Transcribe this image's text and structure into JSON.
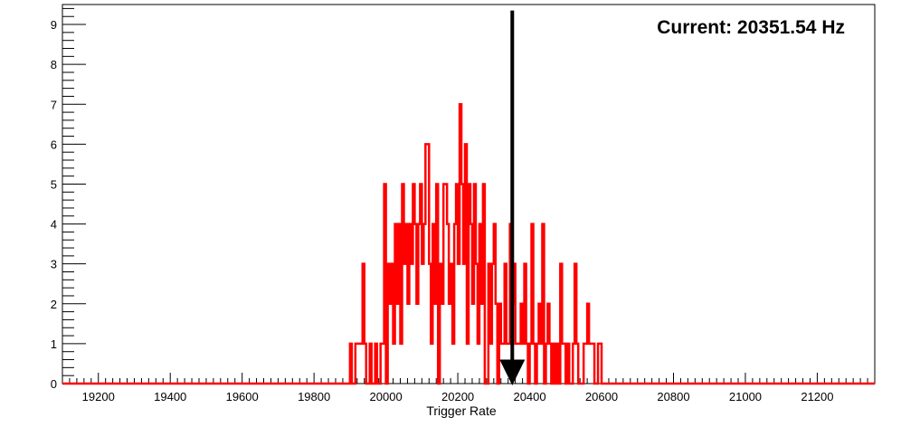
{
  "chart_data": {
    "type": "histogram-step",
    "title": "",
    "xlabel": "Trigger Rate",
    "ylabel": "",
    "xlim": [
      19100,
      21360
    ],
    "ylim": [
      0,
      9.5
    ],
    "grid": false,
    "x_ticks": [
      19200,
      19400,
      19600,
      19800,
      20000,
      20200,
      20400,
      20600,
      20800,
      21000,
      21200
    ],
    "y_ticks": [
      0,
      1,
      2,
      3,
      4,
      5,
      6,
      7,
      8,
      9
    ],
    "bin_width": 5,
    "series": [
      {
        "color": "#ff0000",
        "bins": [
          [
            19900,
            1
          ],
          [
            19905,
            0
          ],
          [
            19915,
            1
          ],
          [
            19935,
            3
          ],
          [
            19940,
            1
          ],
          [
            19945,
            0
          ],
          [
            19955,
            1
          ],
          [
            19960,
            0
          ],
          [
            19970,
            1
          ],
          [
            19975,
            0
          ],
          [
            19985,
            1
          ],
          [
            19990,
            1
          ],
          [
            19995,
            5
          ],
          [
            20000,
            0
          ],
          [
            20005,
            3
          ],
          [
            20010,
            2
          ],
          [
            20015,
            3
          ],
          [
            20020,
            1
          ],
          [
            20025,
            4
          ],
          [
            20030,
            2
          ],
          [
            20035,
            4
          ],
          [
            20040,
            1
          ],
          [
            20045,
            5
          ],
          [
            20050,
            3
          ],
          [
            20055,
            4
          ],
          [
            20060,
            2
          ],
          [
            20065,
            4
          ],
          [
            20070,
            3
          ],
          [
            20075,
            5
          ],
          [
            20080,
            4
          ],
          [
            20085,
            2
          ],
          [
            20090,
            4
          ],
          [
            20095,
            5
          ],
          [
            20100,
            3
          ],
          [
            20105,
            4
          ],
          [
            20110,
            6
          ],
          [
            20120,
            3
          ],
          [
            20125,
            1
          ],
          [
            20130,
            4
          ],
          [
            20135,
            2
          ],
          [
            20140,
            5
          ],
          [
            20145,
            0
          ],
          [
            20150,
            3
          ],
          [
            20155,
            2
          ],
          [
            20160,
            5
          ],
          [
            20170,
            4
          ],
          [
            20175,
            2
          ],
          [
            20180,
            3
          ],
          [
            20185,
            1
          ],
          [
            20190,
            4
          ],
          [
            20195,
            5
          ],
          [
            20200,
            3
          ],
          [
            20205,
            7
          ],
          [
            20210,
            5
          ],
          [
            20215,
            3
          ],
          [
            20220,
            6
          ],
          [
            20225,
            1
          ],
          [
            20230,
            5
          ],
          [
            20235,
            4
          ],
          [
            20240,
            2
          ],
          [
            20245,
            5
          ],
          [
            20250,
            3
          ],
          [
            20255,
            1
          ],
          [
            20260,
            4
          ],
          [
            20265,
            2
          ],
          [
            20270,
            5
          ],
          [
            20275,
            0
          ],
          [
            20285,
            3
          ],
          [
            20290,
            1
          ],
          [
            20295,
            3
          ],
          [
            20300,
            4
          ],
          [
            20305,
            2
          ],
          [
            20310,
            0
          ],
          [
            20315,
            2
          ],
          [
            20320,
            1
          ],
          [
            20325,
            1
          ],
          [
            20330,
            3
          ],
          [
            20335,
            1
          ],
          [
            20345,
            4
          ],
          [
            20350,
            2
          ],
          [
            20355,
            3
          ],
          [
            20360,
            1
          ],
          [
            20375,
            2
          ],
          [
            20380,
            1
          ],
          [
            20385,
            3
          ],
          [
            20390,
            1
          ],
          [
            20395,
            0
          ],
          [
            20400,
            1
          ],
          [
            20405,
            4
          ],
          [
            20410,
            1
          ],
          [
            20415,
            0
          ],
          [
            20420,
            1
          ],
          [
            20425,
            2
          ],
          [
            20430,
            1
          ],
          [
            20435,
            4
          ],
          [
            20440,
            0
          ],
          [
            20445,
            1
          ],
          [
            20450,
            2
          ],
          [
            20455,
            1
          ],
          [
            20460,
            0
          ],
          [
            20465,
            1
          ],
          [
            20470,
            0
          ],
          [
            20475,
            1
          ],
          [
            20480,
            0
          ],
          [
            20485,
            3
          ],
          [
            20490,
            1
          ],
          [
            20500,
            0
          ],
          [
            20505,
            1
          ],
          [
            20510,
            0
          ],
          [
            20520,
            1
          ],
          [
            20525,
            3
          ],
          [
            20530,
            1
          ],
          [
            20535,
            0
          ],
          [
            20550,
            1
          ],
          [
            20560,
            2
          ],
          [
            20565,
            1
          ],
          [
            20575,
            1
          ],
          [
            20580,
            0
          ],
          [
            20590,
            1
          ],
          [
            20600,
            0
          ]
        ]
      }
    ],
    "marker": {
      "x": 20351.54,
      "top": 9.35
    },
    "annotation": "Current: 20351.54 Hz"
  }
}
